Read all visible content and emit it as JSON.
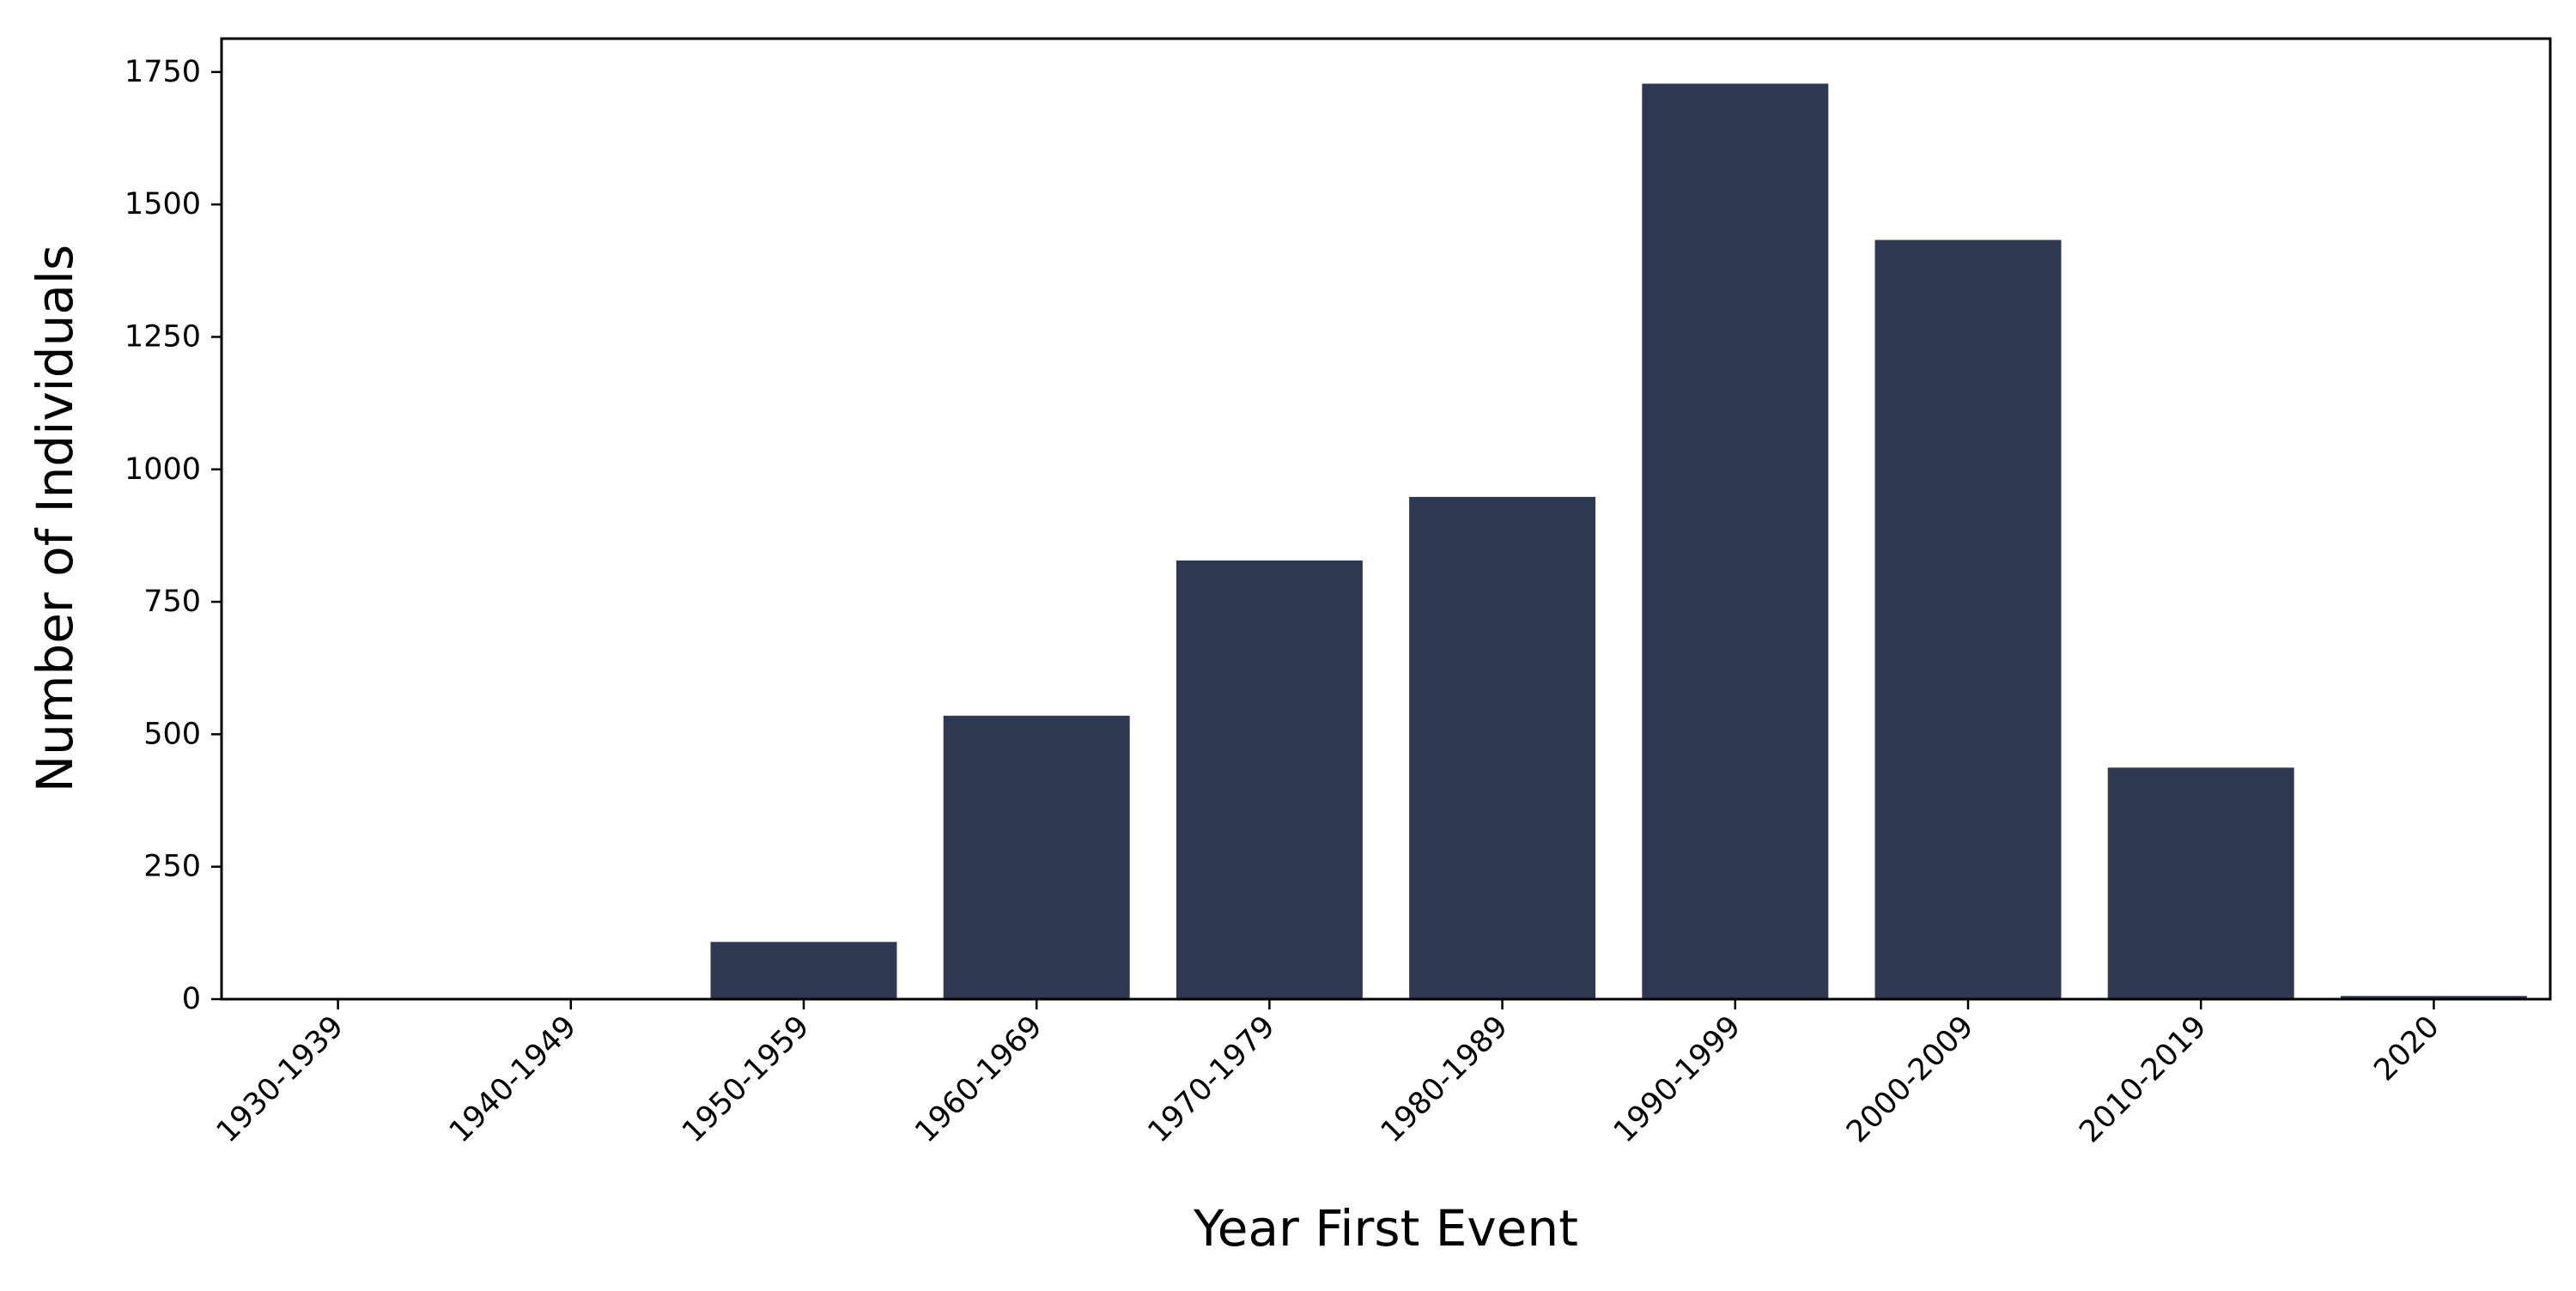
{
  "chart_data": {
    "type": "bar",
    "title": "",
    "xlabel": "Year First Event",
    "ylabel": "Number of Individuals",
    "categories": [
      "1930-1939",
      "1940-1949",
      "1950-1959",
      "1960-1969",
      "1970-1979",
      "1980-1989",
      "1990-1999",
      "2000-2009",
      "2010-2019",
      "2020"
    ],
    "values": [
      1,
      1,
      108,
      535,
      828,
      948,
      1728,
      1433,
      437,
      6
    ],
    "ylim": [
      0,
      1813
    ],
    "yticks": [
      0,
      250,
      500,
      750,
      1000,
      1250,
      1500,
      1750
    ],
    "grid": false,
    "legend": "none",
    "bar_color": "#2e3850"
  }
}
